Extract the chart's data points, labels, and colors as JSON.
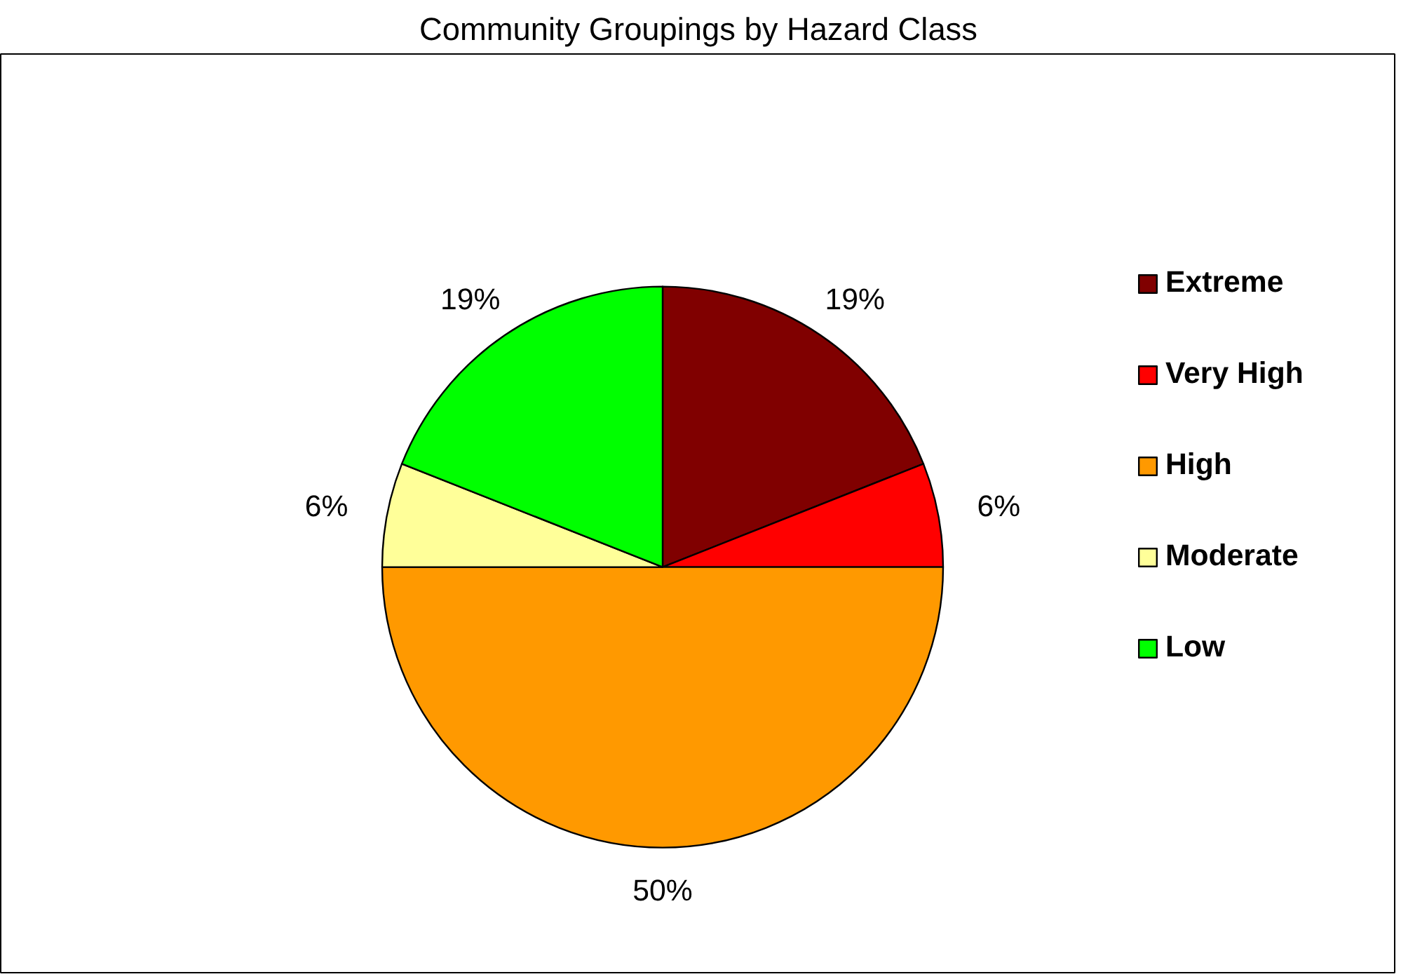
{
  "chart_data": {
    "type": "pie",
    "title": "Community Groupings by Hazard Class",
    "categories": [
      "Extreme",
      "Very High",
      "High",
      "Moderate",
      "Low"
    ],
    "values": [
      19,
      6,
      50,
      6,
      19
    ],
    "colors": [
      "#800000",
      "#ff0000",
      "#ff9900",
      "#ffff99",
      "#00ff00"
    ],
    "value_labels": [
      "19%",
      "6%",
      "50%",
      "6%",
      "19%"
    ],
    "legend": "right"
  }
}
